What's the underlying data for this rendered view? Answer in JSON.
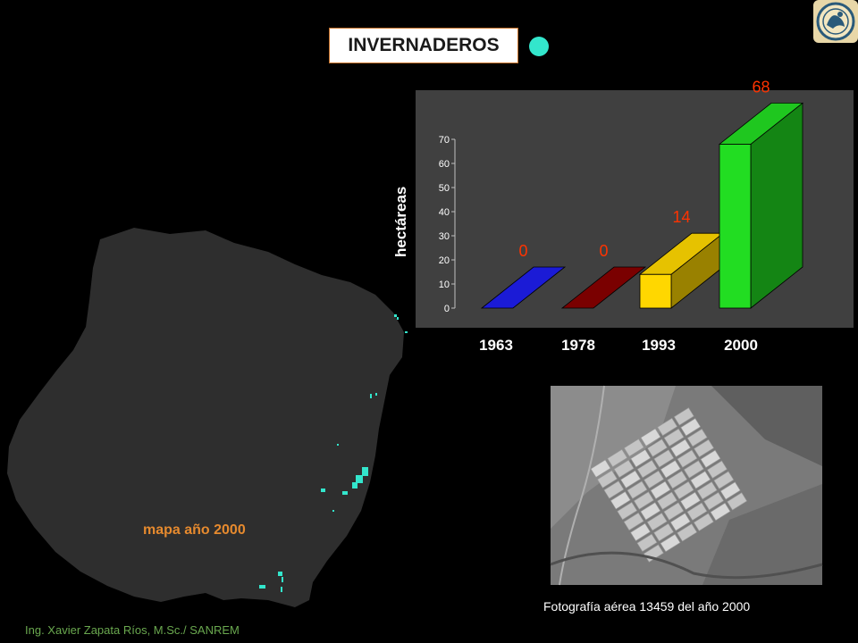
{
  "title": "INVERNADEROS",
  "legend_color": "#33e6cc",
  "map_label": "mapa año 2000",
  "photo_caption": "Fotografía aérea 13459 del año 2000",
  "credit": "Ing. Xavier Zapata Ríos, M.Sc./ SANREM",
  "logo_icon": "institutional-seal-icon",
  "chart_data": {
    "type": "bar",
    "title": "",
    "xlabel": "",
    "ylabel": "hectáreas",
    "categories": [
      "1963",
      "1978",
      "1993",
      "2000"
    ],
    "values": [
      0,
      0,
      14,
      68
    ],
    "data_labels": [
      "0",
      "0",
      "14",
      "68"
    ],
    "colors": [
      "#1b1bd6",
      "#7a0000",
      "#ffd700",
      "#22dd22"
    ],
    "yticks": [
      0,
      10,
      20,
      30,
      40,
      50,
      60,
      70
    ],
    "ylim": [
      0,
      70
    ],
    "grid": false,
    "style": "3d"
  }
}
